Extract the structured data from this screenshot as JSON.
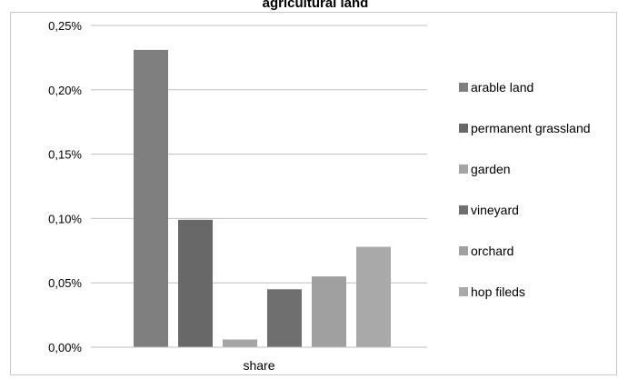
{
  "chart_data": {
    "type": "bar",
    "title": "agricultural land",
    "xlabel": "share",
    "ylabel": "",
    "categories": [
      "share"
    ],
    "ylim": [
      0,
      0.25
    ],
    "yticks": [
      "0,00%",
      "0,05%",
      "0,10%",
      "0,15%",
      "0,20%",
      "0,25%"
    ],
    "ytick_values": [
      0,
      0.05,
      0.1,
      0.15,
      0.2,
      0.25
    ],
    "grid": true,
    "legend_position": "right",
    "series": [
      {
        "name": "arable land",
        "values": [
          0.231
        ],
        "color": "#7f7f7f"
      },
      {
        "name": "permanent grassland",
        "values": [
          0.099
        ],
        "color": "#686868"
      },
      {
        "name": "garden",
        "values": [
          0.006
        ],
        "color": "#a5a5a5"
      },
      {
        "name": "vineyard",
        "values": [
          0.045
        ],
        "color": "#6f6f6f"
      },
      {
        "name": "orchard",
        "values": [
          0.055
        ],
        "color": "#a0a0a0"
      },
      {
        "name": "hop fileds",
        "values": [
          0.078
        ],
        "color": "#a9a9a9"
      }
    ]
  }
}
